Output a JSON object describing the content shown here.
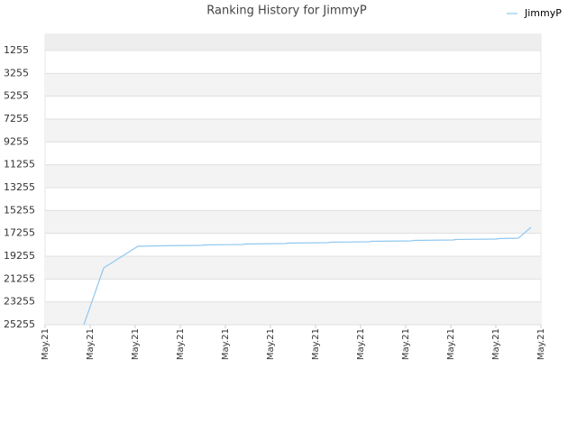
{
  "chart_data": {
    "type": "line",
    "title": "Ranking History for JimmyP",
    "inverted_y": true,
    "grid": true,
    "legend": "top-right",
    "xlim": [
      0,
      11
    ],
    "xticks": [
      {
        "value": 0,
        "label": "May.21"
      },
      {
        "value": 1,
        "label": "May.21"
      },
      {
        "value": 2,
        "label": "May.21"
      },
      {
        "value": 3,
        "label": "May.21"
      },
      {
        "value": 4,
        "label": "May.21"
      },
      {
        "value": 5,
        "label": "May.21"
      },
      {
        "value": 6,
        "label": "May.21"
      },
      {
        "value": 7,
        "label": "May.21"
      },
      {
        "value": 8,
        "label": "May.21"
      },
      {
        "value": 9,
        "label": "May.21"
      },
      {
        "value": 10,
        "label": "May.21"
      },
      {
        "value": 11,
        "label": "May.21"
      }
    ],
    "ylim": [
      -166,
      25255
    ],
    "yticks": [
      1255,
      3255,
      5255,
      7255,
      9255,
      11255,
      13255,
      15255,
      17255,
      19255,
      21255,
      23255,
      25255
    ],
    "x": [
      0.86,
      1.3,
      2.06,
      2.56,
      3.48,
      3.52,
      4.4,
      4.44,
      5.34,
      5.38,
      6.28,
      6.32,
      7.2,
      7.24,
      8.14,
      8.18,
      9.06,
      9.1,
      10.02,
      10.06,
      10.5,
      10.78
    ],
    "series": [
      {
        "name": "JimmyP",
        "color": "#90c8f0",
        "values": [
          25255,
          20281,
          18387,
          18347,
          18308,
          18268,
          18229,
          18189,
          18150,
          18110,
          18071,
          18031,
          17992,
          17952,
          17913,
          17873,
          17834,
          17794,
          17755,
          17715,
          17676,
          16729
        ]
      }
    ]
  }
}
